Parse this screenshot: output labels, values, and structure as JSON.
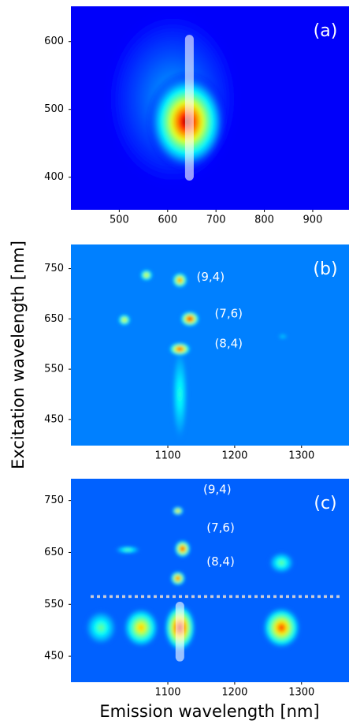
{
  "figure": {
    "xlabel": "Emission wavelength [nm]",
    "ylabel": "Excitation wavelength [nm]"
  },
  "chart_data": [
    {
      "type": "heatmap",
      "label": "(a)",
      "background_level": 0.12,
      "xlim": [
        400,
        975
      ],
      "ylim": [
        352,
        652
      ],
      "xticks": [
        500,
        600,
        700,
        800,
        900
      ],
      "yticks": [
        400,
        500,
        600
      ],
      "spots": [
        {
          "x": 610,
          "y": 515,
          "sx": 150,
          "sy": 140,
          "intensity": 0.3
        },
        {
          "x": 640,
          "y": 482,
          "sx": 85,
          "sy": 75,
          "intensity": 1.0
        }
      ],
      "bar_marker": {
        "x": 645,
        "y": [
          395,
          610
        ]
      },
      "annotations": []
    },
    {
      "type": "heatmap",
      "label": "(b)",
      "background_level": 0.25,
      "xlim": [
        955,
        1371
      ],
      "ylim": [
        398,
        798
      ],
      "xticks": [
        1100,
        1200,
        1300
      ],
      "yticks": [
        450,
        550,
        650,
        750
      ],
      "spots": [
        {
          "x": 1118,
          "y": 500,
          "sx": 13,
          "sy": 95,
          "intensity": 0.42
        },
        {
          "x": 1118,
          "y": 727,
          "sx": 12,
          "sy": 16,
          "intensity": 0.85
        },
        {
          "x": 1133,
          "y": 650,
          "sx": 15,
          "sy": 16,
          "intensity": 1.0
        },
        {
          "x": 1118,
          "y": 590,
          "sx": 17,
          "sy": 14,
          "intensity": 0.95
        },
        {
          "x": 1035,
          "y": 648,
          "sx": 10,
          "sy": 12,
          "intensity": 0.7
        },
        {
          "x": 1068,
          "y": 737,
          "sx": 10,
          "sy": 12,
          "intensity": 0.7
        },
        {
          "x": 1272,
          "y": 615,
          "sx": 8,
          "sy": 6,
          "intensity": 0.35
        }
      ],
      "annotations": [
        {
          "text": "(9,4)",
          "x": 1143,
          "y": 733
        },
        {
          "text": "(7,6)",
          "x": 1170,
          "y": 660
        },
        {
          "text": "(8,4)",
          "x": 1170,
          "y": 600
        }
      ]
    },
    {
      "type": "heatmap",
      "label": "(c)",
      "background_level": 0.22,
      "xlim": [
        955,
        1371
      ],
      "ylim": [
        400,
        792
      ],
      "xticks": [
        1100,
        1200,
        1300
      ],
      "yticks": [
        450,
        550,
        650,
        750
      ],
      "spots": [
        {
          "x": 1000,
          "y": 505,
          "sx": 25,
          "sy": 35,
          "intensity": 0.5
        },
        {
          "x": 1060,
          "y": 505,
          "sx": 28,
          "sy": 40,
          "intensity": 0.72
        },
        {
          "x": 1270,
          "y": 505,
          "sx": 30,
          "sy": 42,
          "intensity": 0.85
        },
        {
          "x": 1270,
          "y": 630,
          "sx": 20,
          "sy": 22,
          "intensity": 0.5
        },
        {
          "x": 1040,
          "y": 655,
          "sx": 20,
          "sy": 8,
          "intensity": 0.5
        },
        {
          "x": 1118,
          "y": 505,
          "sx": 25,
          "sy": 48,
          "intensity": 1.0
        },
        {
          "x": 1115,
          "y": 730,
          "sx": 9,
          "sy": 9,
          "intensity": 0.8
        },
        {
          "x": 1122,
          "y": 657,
          "sx": 13,
          "sy": 18,
          "intensity": 0.95
        },
        {
          "x": 1115,
          "y": 600,
          "sx": 12,
          "sy": 15,
          "intensity": 0.9
        }
      ],
      "bar_marker": {
        "x": 1118,
        "y": [
          440,
          555
        ]
      },
      "dashed_line_y": 565,
      "annotations": [
        {
          "text": "(9,4)",
          "x": 1153,
          "y": 771
        },
        {
          "text": "(7,6)",
          "x": 1158,
          "y": 697
        },
        {
          "text": "(8,4)",
          "x": 1158,
          "y": 632
        }
      ]
    }
  ]
}
